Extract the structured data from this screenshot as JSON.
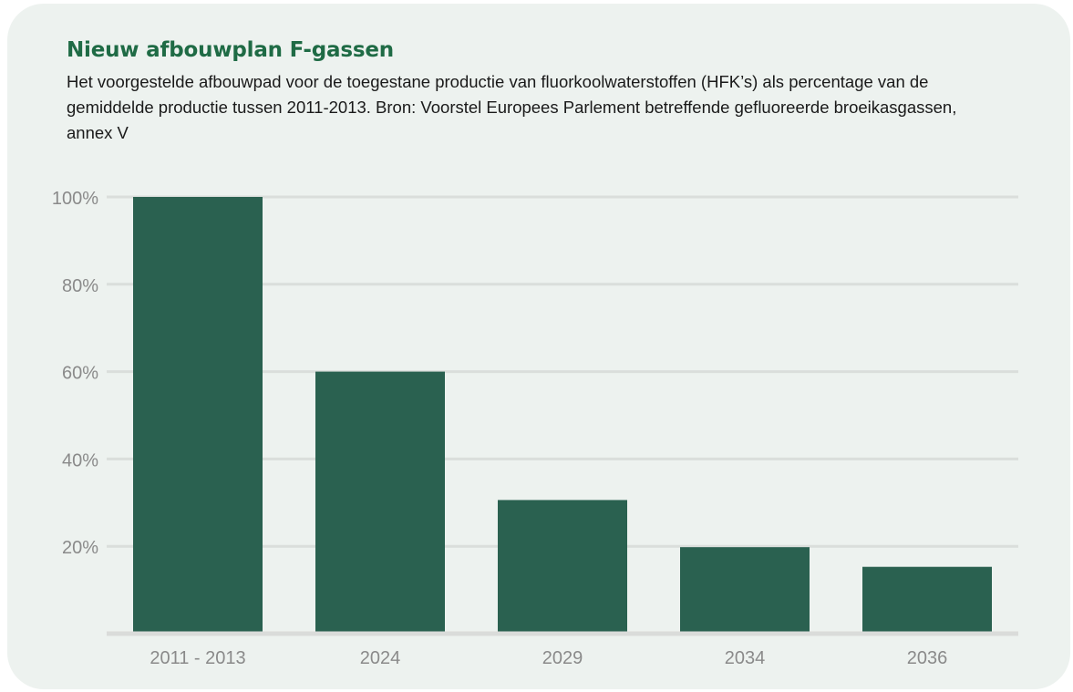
{
  "chart_data": {
    "type": "bar",
    "title": "Nieuw afbouwplan F-gassen",
    "subtitle": "Het voorgestelde afbouwpad voor de toegestane productie van fluorkoolwaterstoffen (HFK’s) als percentage van de gemiddelde productie tussen 2011-2013. Bron: Voorstel Europees Parlement betreffende gefluoreerde broeikasgassen, annex V",
    "categories": [
      "2011 - 2013",
      "2024",
      "2029",
      "2034",
      "2036"
    ],
    "values": [
      100,
      60,
      30.6,
      19.8,
      15.3
    ],
    "ylim": [
      0,
      100
    ],
    "yticks": [
      20,
      40,
      60,
      80,
      100
    ],
    "ytick_labels": [
      "20%",
      "40%",
      "60%",
      "80%",
      "100%"
    ],
    "grid": true,
    "colors": {
      "bar": "#2a6150",
      "title": "#1f6b45",
      "grid": "#dadedb",
      "axis": "#dadcda",
      "tick_label": "#8a8a8a",
      "background": "#edf2ef"
    }
  }
}
